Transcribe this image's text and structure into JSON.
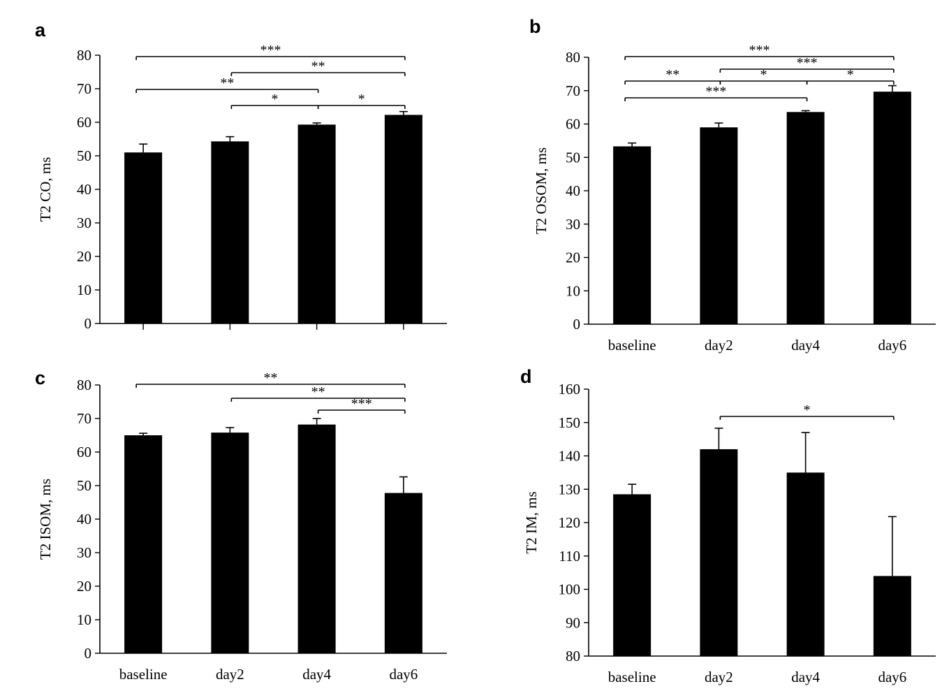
{
  "chart_data": [
    {
      "panel_label": "a",
      "type": "bar",
      "categories": [
        "",
        "",
        "",
        ""
      ],
      "values": [
        51,
        54.3,
        59.3,
        62.2
      ],
      "errors": [
        2.5,
        1.4,
        0.5,
        1.0
      ],
      "ylabel": "T2 CO, ms",
      "ylim": [
        0,
        80
      ],
      "yticks": [
        "0",
        "10",
        "20",
        "30",
        "40",
        "50",
        "60",
        "70",
        "80"
      ],
      "significance": [
        {
          "from": 0,
          "to": 3,
          "label": "***"
        },
        {
          "from": 1,
          "to": 3,
          "label": "**"
        },
        {
          "from": 0,
          "to": 2,
          "label": "**"
        },
        {
          "from": 1,
          "to": 2,
          "label": "*"
        },
        {
          "from": 2,
          "to": 3,
          "label": "*"
        }
      ]
    },
    {
      "panel_label": "b",
      "type": "bar",
      "categories": [
        "baseline",
        "day2",
        "day4",
        "day6"
      ],
      "values": [
        53.3,
        59,
        63.6,
        69.7
      ],
      "errors": [
        1.0,
        1.3,
        0.4,
        1.8
      ],
      "ylabel": "T2 OSOM, ms",
      "ylim": [
        0,
        80
      ],
      "yticks": [
        "0",
        "10",
        "20",
        "30",
        "40",
        "50",
        "60",
        "70",
        "80"
      ],
      "significance": [
        {
          "from": 0,
          "to": 3,
          "label": "***"
        },
        {
          "from": 1,
          "to": 3,
          "label": "***"
        },
        {
          "from": 0,
          "to": 1,
          "label": "**"
        },
        {
          "from": 1,
          "to": 2,
          "label": "*"
        },
        {
          "from": 2,
          "to": 3,
          "label": "*"
        },
        {
          "from": 0,
          "to": 2,
          "label": "***"
        }
      ]
    },
    {
      "panel_label": "c",
      "type": "bar",
      "categories": [
        "baseline",
        "day2",
        "day4",
        "day6"
      ],
      "values": [
        65,
        65.8,
        68.2,
        47.8
      ],
      "errors": [
        0.6,
        1.5,
        1.8,
        4.8
      ],
      "ylabel": "T2 ISOM, ms",
      "ylim": [
        0,
        80
      ],
      "yticks": [
        "0",
        "10",
        "20",
        "30",
        "40",
        "50",
        "60",
        "70",
        "80"
      ],
      "significance": [
        {
          "from": 0,
          "to": 3,
          "label": "**"
        },
        {
          "from": 1,
          "to": 3,
          "label": "**"
        },
        {
          "from": 2,
          "to": 3,
          "label": "***"
        }
      ]
    },
    {
      "panel_label": "d",
      "type": "bar",
      "categories": [
        "baseline",
        "day2",
        "day4",
        "day6"
      ],
      "values": [
        128.5,
        142,
        135,
        104
      ],
      "errors": [
        3,
        6.3,
        12,
        17.8
      ],
      "ylabel": "T2 IM, ms",
      "ylim": [
        80,
        160
      ],
      "yticks": [
        "80",
        "90",
        "100",
        "110",
        "120",
        "130",
        "140",
        "150",
        "160"
      ],
      "significance": [
        {
          "from": 1,
          "to": 3,
          "label": "*"
        }
      ]
    }
  ]
}
